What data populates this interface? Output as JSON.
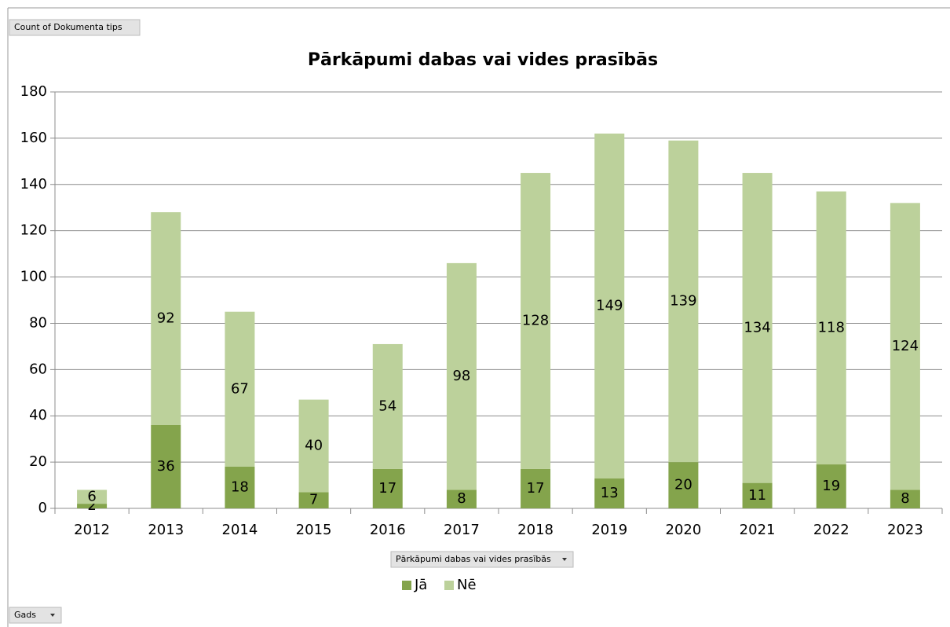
{
  "chart_data": {
    "type": "stacked_bar",
    "title": "Pārkāpumi dabas vai vides prasībās",
    "value_field_button": "Count of Dokumenta tips",
    "legend_field_button": "Pārkāpumi dabas vai vides prasībās",
    "axis_field_button": "Gads",
    "categories": [
      "2012",
      "2013",
      "2014",
      "2015",
      "2016",
      "2017",
      "2018",
      "2019",
      "2020",
      "2021",
      "2022",
      "2023"
    ],
    "series": [
      {
        "name": "Jā",
        "color": "#84a44c",
        "values": [
          2,
          36,
          18,
          7,
          17,
          8,
          17,
          13,
          20,
          11,
          19,
          8
        ]
      },
      {
        "name": "Nē",
        "color": "#bcd19b",
        "values": [
          6,
          92,
          67,
          40,
          54,
          98,
          128,
          149,
          139,
          134,
          118,
          124
        ]
      }
    ],
    "ylim": [
      0,
      180
    ],
    "yticks": [
      0,
      20,
      40,
      60,
      80,
      100,
      120,
      140,
      160,
      180
    ],
    "grid": true,
    "legend": "bottom"
  }
}
